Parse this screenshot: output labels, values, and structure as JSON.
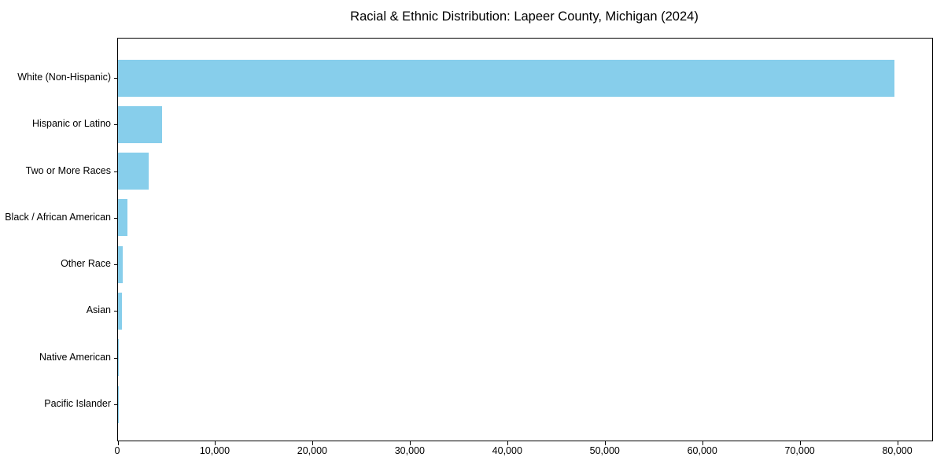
{
  "title": "Racial & Ethnic Distribution: Lapeer County, Michigan (2024)",
  "chart_data": {
    "type": "bar",
    "orientation": "horizontal",
    "title": "Racial & Ethnic Distribution: Lapeer County, Michigan (2024)",
    "xlabel": "",
    "ylabel": "",
    "categories": [
      "White (Non-Hispanic)",
      "Hispanic or Latino",
      "Two or More Races",
      "Black / African American",
      "Other Race",
      "Asian",
      "Native American",
      "Pacific Islander"
    ],
    "values": [
      79600,
      4550,
      3120,
      950,
      520,
      410,
      30,
      10
    ],
    "bar_color": "#87CEEB",
    "xlim": [
      0,
      83500
    ],
    "x_ticks": [
      0,
      10000,
      20000,
      30000,
      40000,
      50000,
      60000,
      70000,
      80000
    ],
    "x_tick_labels": [
      "0",
      "10,000",
      "20,000",
      "30,000",
      "40,000",
      "50,000",
      "60,000",
      "70,000",
      "80,000"
    ],
    "grid": false,
    "legend": null,
    "spines": "full-box"
  }
}
